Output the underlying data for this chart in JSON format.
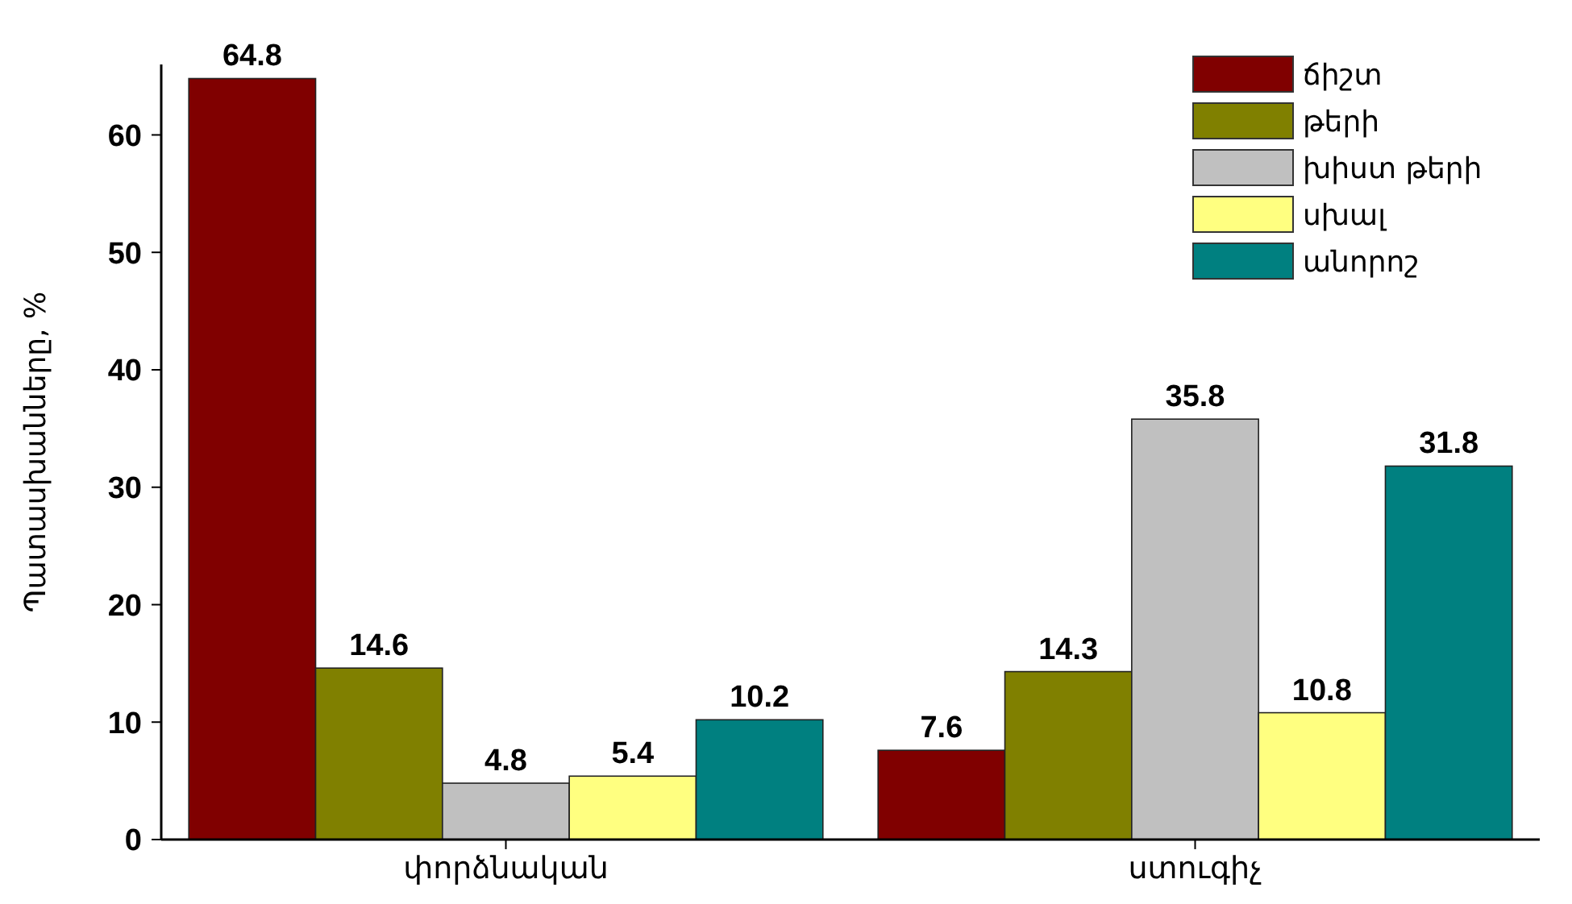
{
  "chart_data": {
    "type": "bar",
    "ylabel": "Պատասխանները, %",
    "categories": [
      "փորձնական",
      "ստուգիչ"
    ],
    "series": [
      {
        "name": "ճիշտ",
        "color": "#800000",
        "values": [
          64.8,
          7.6
        ]
      },
      {
        "name": "թերի",
        "color": "#808000",
        "values": [
          14.6,
          14.3
        ]
      },
      {
        "name": "խիստ թերի",
        "color": "#c0c0c0",
        "values": [
          4.8,
          35.8
        ]
      },
      {
        "name": "սխալ",
        "color": "#ffff80",
        "values": [
          5.4,
          10.8
        ]
      },
      {
        "name": "անորոշ",
        "color": "#008080",
        "values": [
          10.2,
          31.8
        ]
      }
    ],
    "ylim": [
      0,
      66
    ],
    "yticks": [
      0,
      10,
      20,
      30,
      40,
      50,
      60
    ],
    "data_labels": true,
    "legend": "top right",
    "grid": false
  }
}
